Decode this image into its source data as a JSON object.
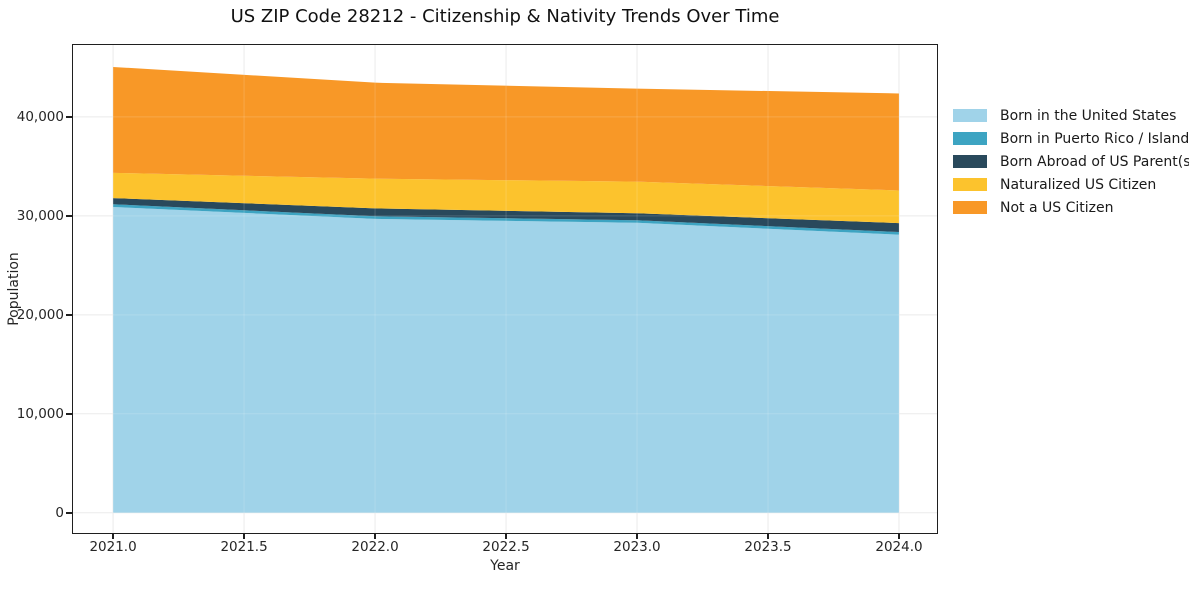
{
  "title": "US ZIP Code 28212 - Citizenship & Nativity Trends Over Time",
  "chart_data": {
    "type": "area",
    "stacked": true,
    "title": "US ZIP Code 28212 - Citizenship & Nativity Trends Over Time",
    "xlabel": "Year",
    "ylabel": "Population",
    "x": [
      2021,
      2022,
      2023,
      2024
    ],
    "series": [
      {
        "name": "Born in the United States",
        "color": "#a0d3e9",
        "values": [
          30900,
          29700,
          29300,
          28100
        ]
      },
      {
        "name": "Born in Puerto Rico / Islands",
        "color": "#3da4c2",
        "values": [
          280,
          260,
          260,
          270
        ]
      },
      {
        "name": "Born Abroad of US Parent(s)",
        "color": "#29495c",
        "values": [
          620,
          800,
          700,
          900
        ]
      },
      {
        "name": "Naturalized US Citizen",
        "color": "#fcc32d",
        "values": [
          2550,
          3000,
          3200,
          3300
        ]
      },
      {
        "name": "Not a US Citizen",
        "color": "#f89827",
        "values": [
          10700,
          9700,
          9400,
          9800
        ]
      }
    ],
    "xlim": [
      2020.847,
      2024.145
    ],
    "ylim": [
      -2045,
      47268
    ],
    "x_tick_values": [
      2021.0,
      2021.5,
      2022.0,
      2022.5,
      2023.0,
      2023.5,
      2024.0
    ],
    "x_tick_labels": [
      "2021.0",
      "2021.5",
      "2022.0",
      "2022.5",
      "2023.0",
      "2023.5",
      "2024.0"
    ],
    "y_tick_values": [
      0,
      10000,
      20000,
      30000,
      40000
    ],
    "y_tick_labels": [
      "0",
      "10,000",
      "20,000",
      "30,000",
      "40,000"
    ],
    "grid": true,
    "legend_position": "right-outside"
  },
  "colors": {
    "background": "#ffffff",
    "grid": "#e7e7e7",
    "axis": "#1f1f1f",
    "text": "#262626"
  }
}
